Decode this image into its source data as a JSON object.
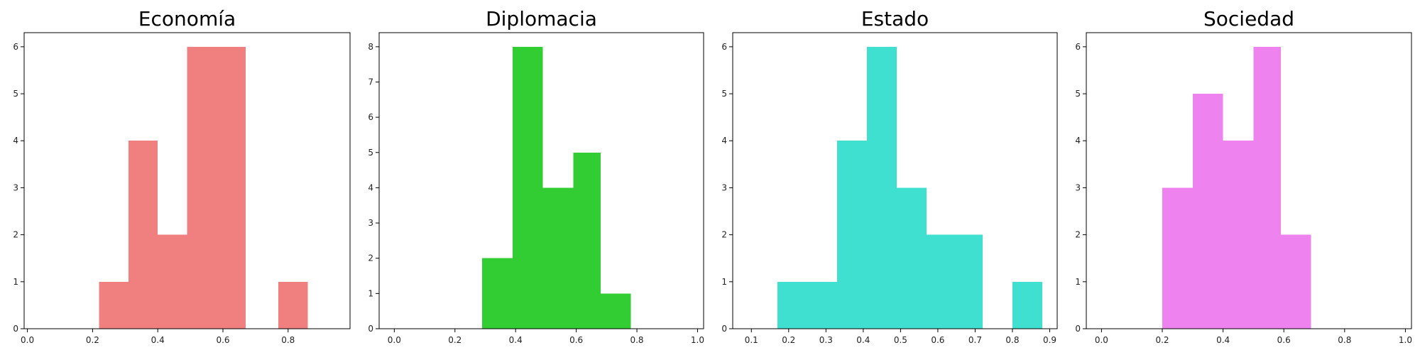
{
  "chart_data": [
    {
      "type": "histogram",
      "title": "Economía",
      "color": "#f08080",
      "xlim": [
        -0.01,
        0.99
      ],
      "ylim": [
        0,
        6.3
      ],
      "xticks": [
        0.0,
        0.2,
        0.4,
        0.6,
        0.8
      ],
      "yticks": [
        0,
        1,
        2,
        3,
        4,
        5,
        6
      ],
      "bins": [
        {
          "x0": 0.22,
          "x1": 0.31,
          "count": 1
        },
        {
          "x0": 0.31,
          "x1": 0.4,
          "count": 4
        },
        {
          "x0": 0.4,
          "x1": 0.49,
          "count": 2
        },
        {
          "x0": 0.49,
          "x1": 0.58,
          "count": 6
        },
        {
          "x0": 0.58,
          "x1": 0.67,
          "count": 6
        },
        {
          "x0": 0.67,
          "x1": 0.77,
          "count": 0
        },
        {
          "x0": 0.77,
          "x1": 0.86,
          "count": 1
        }
      ],
      "grid": false
    },
    {
      "type": "histogram",
      "title": "Diplomacia",
      "color": "#32cd32",
      "xlim": [
        -0.05,
        1.02
      ],
      "ylim": [
        0,
        8.4
      ],
      "xticks": [
        0.0,
        0.2,
        0.4,
        0.6,
        0.8,
        1.0
      ],
      "yticks": [
        0,
        1,
        2,
        3,
        4,
        5,
        6,
        7,
        8
      ],
      "bins": [
        {
          "x0": 0.29,
          "x1": 0.39,
          "count": 2
        },
        {
          "x0": 0.39,
          "x1": 0.49,
          "count": 8
        },
        {
          "x0": 0.49,
          "x1": 0.59,
          "count": 4
        },
        {
          "x0": 0.59,
          "x1": 0.68,
          "count": 5
        },
        {
          "x0": 0.68,
          "x1": 0.78,
          "count": 1
        }
      ],
      "grid": false
    },
    {
      "type": "histogram",
      "title": "Estado",
      "color": "#40e0d0",
      "xlim": [
        0.05,
        0.92
      ],
      "ylim": [
        0,
        6.3
      ],
      "xticks": [
        0.1,
        0.2,
        0.3,
        0.4,
        0.5,
        0.6,
        0.7,
        0.8,
        0.9
      ],
      "yticks": [
        0,
        1,
        2,
        3,
        4,
        5,
        6
      ],
      "bins": [
        {
          "x0": 0.17,
          "x1": 0.25,
          "count": 1
        },
        {
          "x0": 0.25,
          "x1": 0.33,
          "count": 1
        },
        {
          "x0": 0.33,
          "x1": 0.41,
          "count": 4
        },
        {
          "x0": 0.41,
          "x1": 0.49,
          "count": 6
        },
        {
          "x0": 0.49,
          "x1": 0.57,
          "count": 3
        },
        {
          "x0": 0.57,
          "x1": 0.65,
          "count": 2
        },
        {
          "x0": 0.65,
          "x1": 0.72,
          "count": 2
        },
        {
          "x0": 0.72,
          "x1": 0.8,
          "count": 0
        },
        {
          "x0": 0.8,
          "x1": 0.88,
          "count": 1
        }
      ],
      "grid": false
    },
    {
      "type": "histogram",
      "title": "Sociedad",
      "color": "#ee82ee",
      "xlim": [
        -0.05,
        1.02
      ],
      "ylim": [
        0,
        6.3
      ],
      "xticks": [
        0.0,
        0.2,
        0.4,
        0.6,
        0.8,
        1.0
      ],
      "yticks": [
        0,
        1,
        2,
        3,
        4,
        5,
        6
      ],
      "bins": [
        {
          "x0": 0.2,
          "x1": 0.3,
          "count": 3
        },
        {
          "x0": 0.3,
          "x1": 0.4,
          "count": 5
        },
        {
          "x0": 0.4,
          "x1": 0.5,
          "count": 4
        },
        {
          "x0": 0.5,
          "x1": 0.59,
          "count": 6
        },
        {
          "x0": 0.59,
          "x1": 0.69,
          "count": 2
        }
      ],
      "grid": false
    }
  ]
}
